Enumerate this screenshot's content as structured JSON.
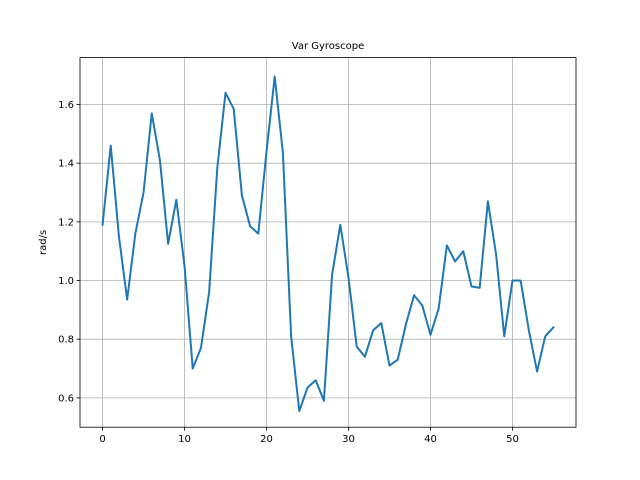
{
  "chart_data": {
    "type": "line",
    "title": "Var Gyroscope",
    "xlabel": "",
    "ylabel": "rad/s",
    "xlim": [
      -2.75,
      57.75
    ],
    "ylim": [
      0.5,
      1.76
    ],
    "grid": true,
    "x_ticks": [
      0,
      10,
      20,
      30,
      40,
      50
    ],
    "y_ticks": [
      0.6,
      0.8,
      1.0,
      1.2,
      1.4,
      1.6
    ],
    "x_tick_labels": [
      "0",
      "10",
      "20",
      "30",
      "40",
      "50"
    ],
    "y_tick_labels": [
      "0.6",
      "0.8",
      "1.0",
      "1.2",
      "1.4",
      "1.6"
    ],
    "series": [
      {
        "color": "#1f77b4",
        "x": [
          0,
          1,
          2,
          3,
          4,
          5,
          6,
          7,
          8,
          9,
          10,
          11,
          12,
          13,
          14,
          15,
          16,
          17,
          18,
          19,
          20,
          21,
          22,
          23,
          24,
          25,
          26,
          27,
          28,
          29,
          30,
          31,
          32,
          33,
          34,
          35,
          36,
          37,
          38,
          39,
          40,
          41,
          42,
          43,
          44,
          45,
          46,
          47,
          48,
          49,
          50,
          51,
          52,
          53,
          54,
          55
        ],
        "values": [
          1.19,
          1.46,
          1.15,
          0.935,
          1.16,
          1.3,
          1.57,
          1.41,
          1.125,
          1.275,
          1.05,
          0.7,
          0.77,
          0.96,
          1.385,
          1.64,
          1.585,
          1.29,
          1.185,
          1.16,
          1.44,
          1.695,
          1.435,
          0.81,
          0.555,
          0.635,
          0.66,
          0.59,
          1.02,
          1.19,
          1.01,
          0.775,
          0.74,
          0.83,
          0.855,
          0.71,
          0.73,
          0.85,
          0.95,
          0.915,
          0.815,
          0.905,
          1.12,
          1.065,
          1.1,
          0.98,
          0.975,
          1.27,
          1.09,
          0.81,
          1.0,
          1.0,
          0.83,
          0.69,
          0.81,
          0.84
        ]
      }
    ]
  }
}
